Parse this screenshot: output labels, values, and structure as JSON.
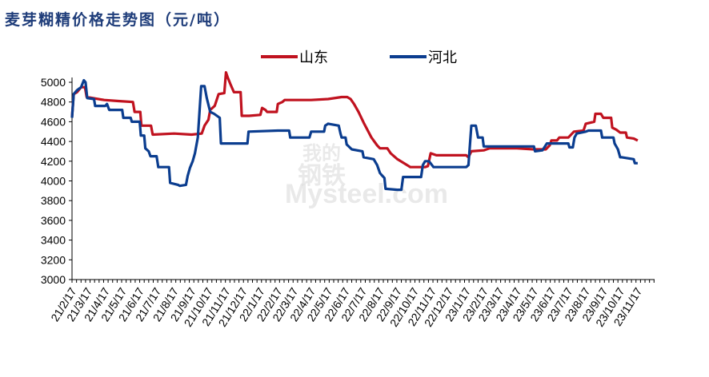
{
  "chart_data": {
    "type": "line",
    "title": "麦芽糊精价格走势图（元/吨）",
    "watermark": [
      "我的",
      "钢铁",
      "Mysteel.com"
    ],
    "ylim": [
      3000,
      5000
    ],
    "yticks": [
      3000,
      3200,
      3400,
      3600,
      3800,
      4000,
      4200,
      4400,
      4600,
      4800,
      5000
    ],
    "xlim": [
      "2021-02-17",
      "2023-12-17"
    ],
    "xtick_labels": [
      "21/2/17",
      "21/3/17",
      "21/4/17",
      "21/5/17",
      "21/6/17",
      "21/7/17",
      "21/8/17",
      "21/9/17",
      "21/10/17",
      "21/11/17",
      "21/12/17",
      "22/1/17",
      "22/2/17",
      "22/3/17",
      "22/4/17",
      "22/5/17",
      "22/6/17",
      "22/7/17",
      "22/8/17",
      "22/9/17",
      "22/10/17",
      "22/11/17",
      "22/12/17",
      "23/1/17",
      "23/2/17",
      "23/3/17",
      "23/4/17",
      "23/5/17",
      "23/6/17",
      "23/7/17",
      "23/8/17",
      "23/9/17",
      "23/10/17",
      "23/11/17"
    ],
    "legend_position": "top-center",
    "grid": false,
    "series": [
      {
        "name": "山东",
        "color": "#c0121f",
        "points": [
          [
            "2021-02-17",
            4650
          ],
          [
            "2021-02-20",
            4880
          ],
          [
            "2021-02-26",
            4900
          ],
          [
            "2021-03-05",
            4950
          ],
          [
            "2021-03-12",
            4950
          ],
          [
            "2021-03-15",
            4850
          ],
          [
            "2021-04-15",
            4820
          ],
          [
            "2021-05-10",
            4810
          ],
          [
            "2021-06-05",
            4800
          ],
          [
            "2021-06-08",
            4700
          ],
          [
            "2021-06-18",
            4700
          ],
          [
            "2021-06-20",
            4560
          ],
          [
            "2021-07-07",
            4560
          ],
          [
            "2021-07-10",
            4470
          ],
          [
            "2021-08-17",
            4480
          ],
          [
            "2021-09-17",
            4470
          ],
          [
            "2021-10-05",
            4480
          ],
          [
            "2021-10-10",
            4560
          ],
          [
            "2021-10-17",
            4620
          ],
          [
            "2021-10-20",
            4720
          ],
          [
            "2021-10-28",
            4760
          ],
          [
            "2021-11-04",
            4880
          ],
          [
            "2021-11-14",
            4890
          ],
          [
            "2021-11-17",
            5100
          ],
          [
            "2021-11-20",
            5050
          ],
          [
            "2021-11-25",
            4980
          ],
          [
            "2021-12-01",
            4900
          ],
          [
            "2021-12-13",
            4900
          ],
          [
            "2021-12-15",
            4660
          ],
          [
            "2021-12-28",
            4660
          ],
          [
            "2022-01-17",
            4670
          ],
          [
            "2022-01-20",
            4740
          ],
          [
            "2022-01-26",
            4720
          ],
          [
            "2022-01-29",
            4700
          ],
          [
            "2022-02-15",
            4700
          ],
          [
            "2022-02-17",
            4780
          ],
          [
            "2022-02-25",
            4800
          ],
          [
            "2022-03-01",
            4820
          ],
          [
            "2022-04-17",
            4820
          ],
          [
            "2022-05-17",
            4830
          ],
          [
            "2022-06-10",
            4850
          ],
          [
            "2022-06-20",
            4850
          ],
          [
            "2022-06-26",
            4830
          ],
          [
            "2022-07-02",
            4780
          ],
          [
            "2022-07-10",
            4700
          ],
          [
            "2022-07-20",
            4580
          ],
          [
            "2022-08-02",
            4440
          ],
          [
            "2022-08-12",
            4360
          ],
          [
            "2022-08-17",
            4330
          ],
          [
            "2022-08-30",
            4330
          ],
          [
            "2022-09-05",
            4280
          ],
          [
            "2022-09-17",
            4220
          ],
          [
            "2022-10-10",
            4140
          ],
          [
            "2022-11-05",
            4140
          ],
          [
            "2022-11-10",
            4150
          ],
          [
            "2022-11-15",
            4280
          ],
          [
            "2022-11-25",
            4260
          ],
          [
            "2023-01-17",
            4260
          ],
          [
            "2023-01-21",
            4240
          ],
          [
            "2023-01-26",
            4300
          ],
          [
            "2023-02-17",
            4310
          ],
          [
            "2023-02-27",
            4330
          ],
          [
            "2023-04-17",
            4330
          ],
          [
            "2023-05-17",
            4320
          ],
          [
            "2023-06-07",
            4320
          ],
          [
            "2023-06-14",
            4360
          ],
          [
            "2023-06-17",
            4410
          ],
          [
            "2023-06-27",
            4410
          ],
          [
            "2023-07-01",
            4440
          ],
          [
            "2023-07-17",
            4440
          ],
          [
            "2023-07-27",
            4500
          ],
          [
            "2023-08-13",
            4510
          ],
          [
            "2023-08-17",
            4580
          ],
          [
            "2023-09-01",
            4600
          ],
          [
            "2023-09-03",
            4680
          ],
          [
            "2023-09-13",
            4680
          ],
          [
            "2023-09-17",
            4640
          ],
          [
            "2023-10-01",
            4640
          ],
          [
            "2023-10-03",
            4540
          ],
          [
            "2023-10-10",
            4520
          ],
          [
            "2023-10-17",
            4490
          ],
          [
            "2023-10-27",
            4490
          ],
          [
            "2023-10-29",
            4440
          ],
          [
            "2023-11-10",
            4430
          ],
          [
            "2023-11-17",
            4410
          ]
        ]
      },
      {
        "name": "河北",
        "color": "#0b3d8f",
        "points": [
          [
            "2021-02-17",
            4640
          ],
          [
            "2021-02-20",
            4880
          ],
          [
            "2021-02-26",
            4920
          ],
          [
            "2021-03-05",
            4950
          ],
          [
            "2021-03-10",
            5020
          ],
          [
            "2021-03-13",
            5000
          ],
          [
            "2021-03-16",
            4840
          ],
          [
            "2021-03-28",
            4830
          ],
          [
            "2021-03-30",
            4760
          ],
          [
            "2021-04-17",
            4760
          ],
          [
            "2021-04-20",
            4780
          ],
          [
            "2021-04-24",
            4720
          ],
          [
            "2021-05-17",
            4720
          ],
          [
            "2021-05-19",
            4640
          ],
          [
            "2021-06-01",
            4640
          ],
          [
            "2021-06-03",
            4600
          ],
          [
            "2021-06-17",
            4600
          ],
          [
            "2021-06-19",
            4460
          ],
          [
            "2021-06-25",
            4460
          ],
          [
            "2021-06-27",
            4330
          ],
          [
            "2021-07-03",
            4300
          ],
          [
            "2021-07-06",
            4250
          ],
          [
            "2021-07-17",
            4250
          ],
          [
            "2021-07-20",
            4140
          ],
          [
            "2021-08-08",
            4140
          ],
          [
            "2021-08-10",
            3980
          ],
          [
            "2021-08-24",
            3960
          ],
          [
            "2021-08-27",
            3950
          ],
          [
            "2021-09-07",
            3960
          ],
          [
            "2021-09-10",
            4050
          ],
          [
            "2021-09-14",
            4130
          ],
          [
            "2021-09-19",
            4200
          ],
          [
            "2021-09-23",
            4280
          ],
          [
            "2021-09-28",
            4440
          ],
          [
            "2021-10-01",
            4700
          ],
          [
            "2021-10-04",
            4960
          ],
          [
            "2021-10-10",
            4960
          ],
          [
            "2021-10-14",
            4840
          ],
          [
            "2021-10-20",
            4700
          ],
          [
            "2021-10-27",
            4680
          ],
          [
            "2021-11-06",
            4640
          ],
          [
            "2021-11-08",
            4380
          ],
          [
            "2021-12-17",
            4380
          ],
          [
            "2021-12-25",
            4380
          ],
          [
            "2021-12-27",
            4500
          ],
          [
            "2022-02-17",
            4510
          ],
          [
            "2022-03-09",
            4510
          ],
          [
            "2022-03-11",
            4440
          ],
          [
            "2022-04-14",
            4440
          ],
          [
            "2022-04-17",
            4500
          ],
          [
            "2022-05-10",
            4500
          ],
          [
            "2022-05-12",
            4560
          ],
          [
            "2022-05-17",
            4580
          ],
          [
            "2022-06-05",
            4560
          ],
          [
            "2022-06-08",
            4480
          ],
          [
            "2022-06-10",
            4440
          ],
          [
            "2022-06-17",
            4440
          ],
          [
            "2022-06-19",
            4370
          ],
          [
            "2022-06-28",
            4320
          ],
          [
            "2022-07-17",
            4300
          ],
          [
            "2022-07-19",
            4240
          ],
          [
            "2022-08-06",
            4220
          ],
          [
            "2022-08-12",
            4160
          ],
          [
            "2022-08-17",
            4080
          ],
          [
            "2022-08-20",
            4060
          ],
          [
            "2022-08-25",
            4030
          ],
          [
            "2022-08-27",
            3920
          ],
          [
            "2022-09-17",
            3910
          ],
          [
            "2022-09-24",
            3910
          ],
          [
            "2022-09-27",
            4040
          ],
          [
            "2022-10-29",
            4040
          ],
          [
            "2022-11-01",
            4160
          ],
          [
            "2022-11-05",
            4200
          ],
          [
            "2022-11-12",
            4200
          ],
          [
            "2022-11-20",
            4140
          ],
          [
            "2023-01-17",
            4140
          ],
          [
            "2023-01-21",
            4160
          ],
          [
            "2023-01-26",
            4560
          ],
          [
            "2023-02-03",
            4560
          ],
          [
            "2023-02-07",
            4440
          ],
          [
            "2023-02-15",
            4440
          ],
          [
            "2023-02-17",
            4350
          ],
          [
            "2023-05-17",
            4350
          ],
          [
            "2023-05-19",
            4300
          ],
          [
            "2023-06-01",
            4310
          ],
          [
            "2023-06-09",
            4380
          ],
          [
            "2023-07-17",
            4380
          ],
          [
            "2023-07-19",
            4340
          ],
          [
            "2023-07-25",
            4340
          ],
          [
            "2023-07-28",
            4440
          ],
          [
            "2023-08-01",
            4480
          ],
          [
            "2023-08-17",
            4500
          ],
          [
            "2023-08-22",
            4510
          ],
          [
            "2023-09-13",
            4510
          ],
          [
            "2023-09-15",
            4440
          ],
          [
            "2023-10-05",
            4440
          ],
          [
            "2023-10-07",
            4380
          ],
          [
            "2023-10-13",
            4320
          ],
          [
            "2023-10-15",
            4280
          ],
          [
            "2023-10-17",
            4240
          ],
          [
            "2023-10-20",
            4240
          ],
          [
            "2023-11-10",
            4220
          ],
          [
            "2023-11-12",
            4180
          ],
          [
            "2023-11-17",
            4180
          ]
        ]
      }
    ]
  }
}
